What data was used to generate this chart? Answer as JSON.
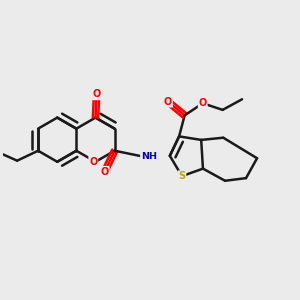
{
  "bg_color": "#ebebeb",
  "bond_color": "#1a1a1a",
  "line_width": 1.8,
  "atom_colors": {
    "O": "#ff0000",
    "N": "#0000cc",
    "S": "#bbaa00",
    "C": "#1a1a1a"
  }
}
